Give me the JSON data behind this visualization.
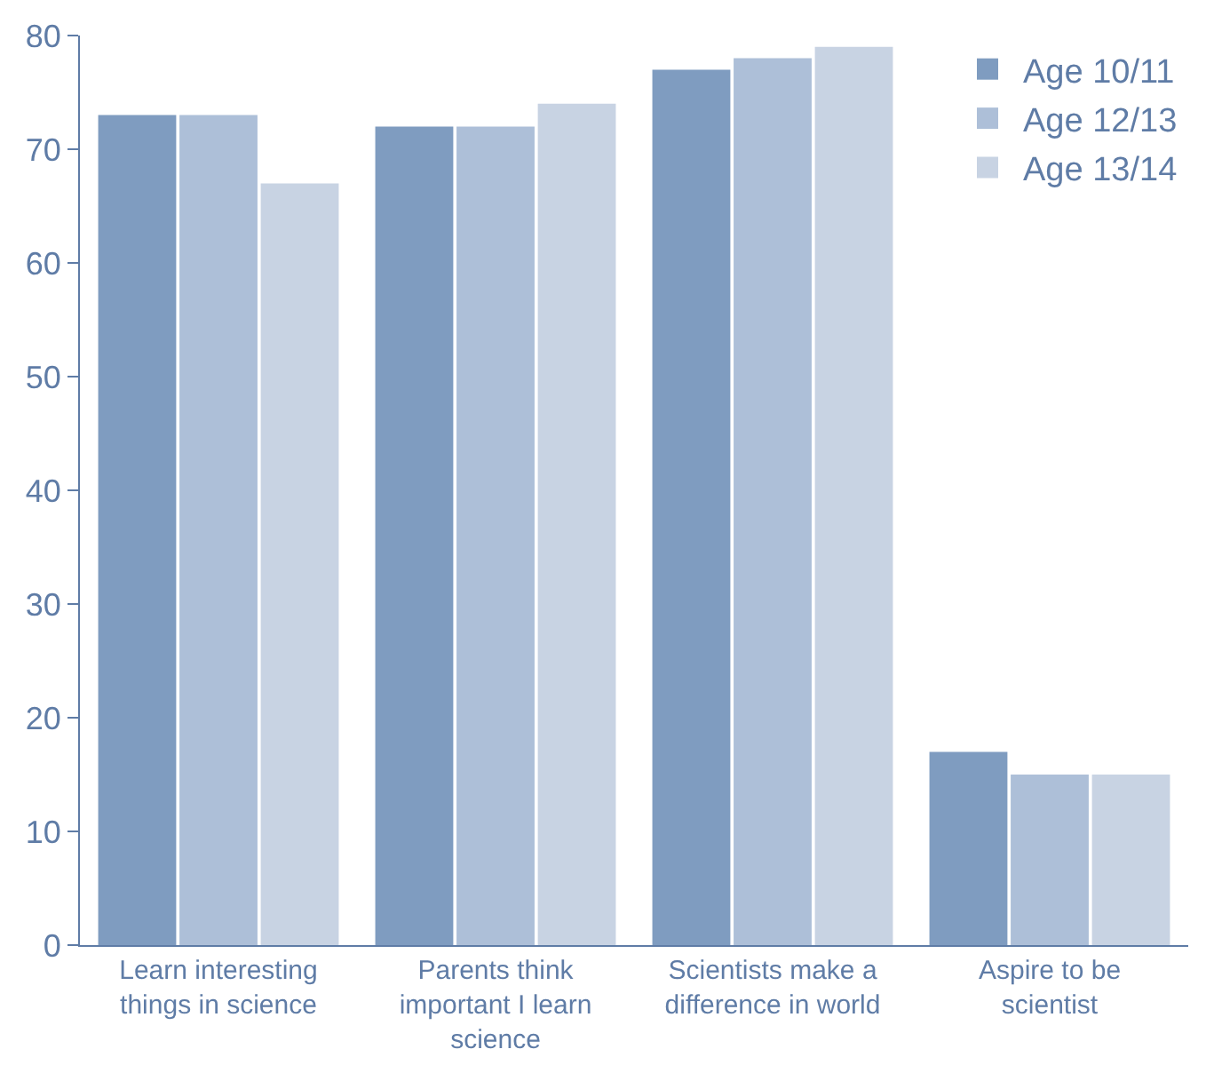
{
  "chart_data": {
    "type": "bar",
    "categories": [
      "Learn interesting\nthings in science",
      "Parents think\nimportant I learn\nscience",
      "Scientists make a\ndifference in world",
      "Aspire to be\nscientist"
    ],
    "series": [
      {
        "name": "Age 10/11",
        "color": "#7f9cc0",
        "values": [
          73,
          72,
          77,
          17
        ]
      },
      {
        "name": "Age 12/13",
        "color": "#adbfd8",
        "values": [
          73,
          72,
          78,
          15
        ]
      },
      {
        "name": "Age 13/14",
        "color": "#c8d3e3",
        "values": [
          67,
          74,
          79,
          15
        ]
      }
    ],
    "ylim": [
      0,
      80
    ],
    "yticks": [
      0,
      10,
      20,
      30,
      40,
      50,
      60,
      70,
      80
    ],
    "legend": "top right"
  }
}
